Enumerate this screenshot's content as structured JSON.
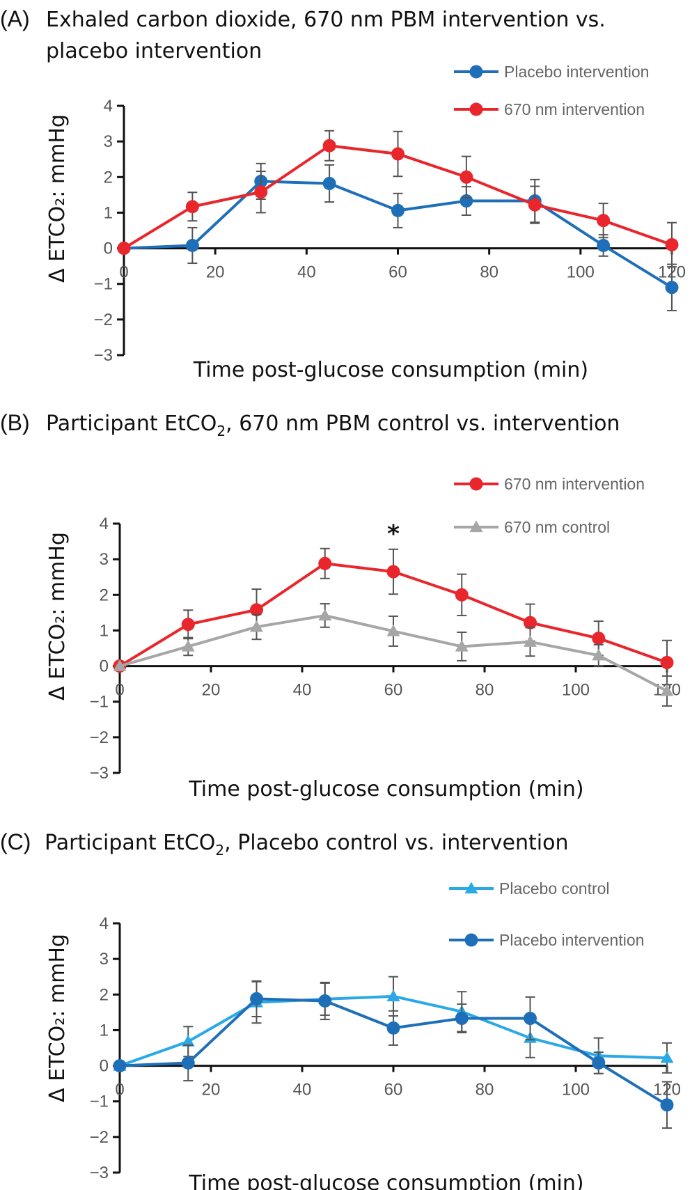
{
  "chart_data": [
    {
      "type": "line",
      "letter": "(A)",
      "title_lines": [
        "Exhaled carbon dioxide, 670 nm PBM intervention vs.",
        "placebo intervention"
      ],
      "ylabel": "Δ ETCO₂: mmHg",
      "xlabel": "Time post-glucose consumption (min)",
      "x": [
        0,
        15,
        30,
        45,
        60,
        75,
        90,
        105,
        120
      ],
      "xticks": [
        0,
        20,
        40,
        60,
        80,
        100,
        120
      ],
      "yticks": [
        4,
        3,
        2,
        1,
        0,
        -1,
        -2,
        -3
      ],
      "xlim": [
        0,
        120
      ],
      "ylim": [
        -3,
        4
      ],
      "series": [
        {
          "name": "Placebo intervention",
          "color": "#1f6fb8",
          "marker": "circle",
          "values": [
            0,
            0.08,
            1.88,
            1.82,
            1.06,
            1.33,
            1.33,
            0.08,
            -1.1
          ],
          "errors": [
            0,
            0.5,
            0.5,
            0.52,
            0.48,
            0.4,
            0.6,
            0.3,
            0.65
          ]
        },
        {
          "name": "670 nm intervention",
          "color": "#e8262b",
          "marker": "circle",
          "values": [
            0,
            1.17,
            1.58,
            2.88,
            2.65,
            2.0,
            1.22,
            0.78,
            0.1
          ],
          "errors": [
            0,
            0.4,
            0.58,
            0.42,
            0.63,
            0.58,
            0.52,
            0.48,
            0.62
          ]
        }
      ],
      "annotations": []
    },
    {
      "type": "line",
      "letter": "(B)",
      "title_prefix": "Participant EtCO",
      "title_sub": "2",
      "title_suffix": ", 670 nm PBM control vs. intervention",
      "ylabel": "Δ ETCO₂: mmHg",
      "xlabel": "Time post-glucose consumption (min)",
      "x": [
        0,
        15,
        30,
        45,
        60,
        75,
        90,
        105,
        120
      ],
      "xticks": [
        0,
        20,
        40,
        60,
        80,
        100,
        120
      ],
      "yticks": [
        4,
        3,
        2,
        1,
        0,
        -1,
        -2,
        -3
      ],
      "xlim": [
        0,
        120
      ],
      "ylim": [
        -3,
        4
      ],
      "series": [
        {
          "name": "670 nm intervention",
          "color": "#e8262b",
          "marker": "circle",
          "values": [
            0,
            1.17,
            1.58,
            2.88,
            2.65,
            2.0,
            1.22,
            0.78,
            0.1
          ],
          "errors": [
            0,
            0.4,
            0.58,
            0.42,
            0.63,
            0.58,
            0.52,
            0.48,
            0.62
          ]
        },
        {
          "name": "670 nm control",
          "color": "#a6a6a6",
          "marker": "triangle",
          "values": [
            0,
            0.55,
            1.1,
            1.42,
            0.98,
            0.55,
            0.68,
            0.3,
            -0.7
          ],
          "errors": [
            0,
            0.25,
            0.35,
            0.33,
            0.42,
            0.4,
            0.4,
            0.3,
            0.42
          ]
        }
      ],
      "annotations": [
        {
          "x": 60,
          "text": "*"
        }
      ]
    },
    {
      "type": "line",
      "letter": "(C)",
      "title_prefix": "Participant EtCO",
      "title_sub": "2",
      "title_suffix": ", Placebo control vs. intervention",
      "ylabel": "Δ ETCO₂: mmHg",
      "xlabel": "Time post-glucose consumption (min)",
      "x": [
        0,
        15,
        30,
        45,
        60,
        75,
        90,
        105,
        120
      ],
      "xticks": [
        0,
        20,
        40,
        60,
        80,
        100,
        120
      ],
      "yticks": [
        4,
        3,
        2,
        1,
        0,
        -1,
        -2,
        -3
      ],
      "xlim": [
        0,
        120
      ],
      "ylim": [
        -3,
        4
      ],
      "series": [
        {
          "name": "Placebo control",
          "color": "#2aa9e6",
          "marker": "triangle",
          "values": [
            0,
            0.68,
            1.78,
            1.87,
            1.95,
            1.52,
            0.78,
            0.28,
            0.22
          ],
          "errors": [
            0,
            0.42,
            0.58,
            0.45,
            0.55,
            0.56,
            0.55,
            0.5,
            0.42
          ]
        },
        {
          "name": "Placebo intervention",
          "color": "#1f6fb8",
          "marker": "circle",
          "values": [
            0,
            0.08,
            1.88,
            1.82,
            1.06,
            1.33,
            1.33,
            0.08,
            -1.1
          ],
          "errors": [
            0,
            0.5,
            0.5,
            0.52,
            0.48,
            0.4,
            0.6,
            0.3,
            0.65
          ]
        }
      ],
      "annotations": []
    }
  ]
}
